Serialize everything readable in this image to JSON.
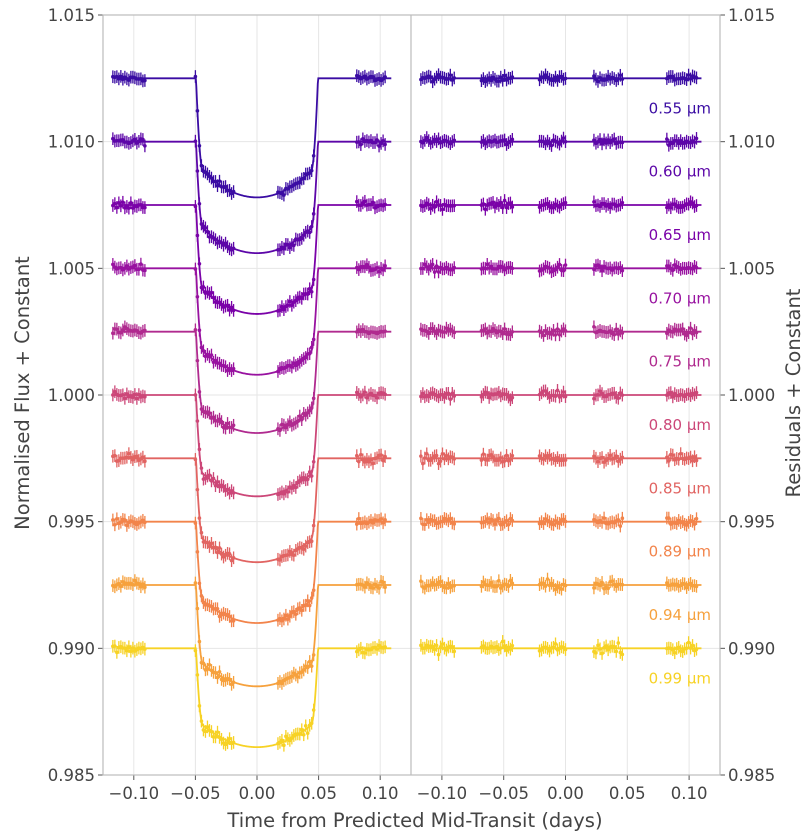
{
  "chart_data": {
    "type": "scatter",
    "xlabel": "Time from Predicted Mid-Transit (days)",
    "ylabel_left": "Normalised Flux + Constant",
    "ylabel_right": "Residuals + Constant",
    "ylim": [
      0.985,
      1.015
    ],
    "yticks": [
      "0.985",
      "0.990",
      "0.995",
      "1.000",
      "1.005",
      "1.010",
      "1.015"
    ],
    "yticks_right": [
      "0.985",
      "0.990",
      "0.995",
      "1.000",
      "1.005",
      "1.010",
      "1.015"
    ],
    "panels": [
      {
        "name": "light_curves",
        "xlim": [
          -0.125,
          0.125
        ],
        "xticks": [
          "−0.10",
          "−0.05",
          "0.00",
          "0.05",
          "0.10"
        ]
      },
      {
        "name": "residuals",
        "xlim": [
          -0.125,
          0.125
        ],
        "xticks": [
          "−0.10",
          "−0.05",
          "0.00",
          "0.05",
          "0.10"
        ]
      }
    ],
    "transit": {
      "t_ingress": -0.0495,
      "t_egress": 0.0495
    },
    "observation_windows": {
      "light_curves": [
        [
          -0.117,
          -0.091
        ],
        [
          -0.05,
          -0.019
        ],
        [
          0.017,
          0.046
        ],
        [
          0.081,
          0.104
        ]
      ],
      "residuals": [
        [
          -0.117,
          -0.09
        ],
        [
          -0.068,
          -0.043
        ],
        [
          -0.021,
          0.0
        ],
        [
          0.023,
          0.046
        ],
        [
          0.082,
          0.106
        ]
      ]
    },
    "series": [
      {
        "label": "0.55 μm",
        "color": "#3a0ca3",
        "baseline": 1.0125,
        "depth": 0.0047,
        "residual_baseline": 1.0125
      },
      {
        "label": "0.60 μm",
        "color": "#5c06a8",
        "baseline": 1.01,
        "depth": 0.0044,
        "residual_baseline": 1.01
      },
      {
        "label": "0.65 μm",
        "color": "#7a02a8",
        "baseline": 1.0075,
        "depth": 0.0043,
        "residual_baseline": 1.0075
      },
      {
        "label": "0.70 μm",
        "color": "#9812a0",
        "baseline": 1.005,
        "depth": 0.0042,
        "residual_baseline": 1.005
      },
      {
        "label": "0.75 μm",
        "color": "#b02a8f",
        "baseline": 1.0025,
        "depth": 0.004,
        "residual_baseline": 1.0025
      },
      {
        "label": "0.80 μm",
        "color": "#cc4778",
        "baseline": 1.0,
        "depth": 0.004,
        "residual_baseline": 1.0
      },
      {
        "label": "0.85 μm",
        "color": "#e16462",
        "baseline": 0.9975,
        "depth": 0.0041,
        "residual_baseline": 0.9975
      },
      {
        "label": "0.89 μm",
        "color": "#f2844b",
        "baseline": 0.995,
        "depth": 0.004,
        "residual_baseline": 0.995
      },
      {
        "label": "0.94 μm",
        "color": "#f6a13d",
        "baseline": 0.9925,
        "depth": 0.004,
        "residual_baseline": 0.9925
      },
      {
        "label": "0.99 μm",
        "color": "#f7d225",
        "baseline": 0.99,
        "depth": 0.0039,
        "residual_baseline": 0.99
      }
    ],
    "error_bar": 0.00025,
    "grid": true,
    "legend": "none"
  }
}
